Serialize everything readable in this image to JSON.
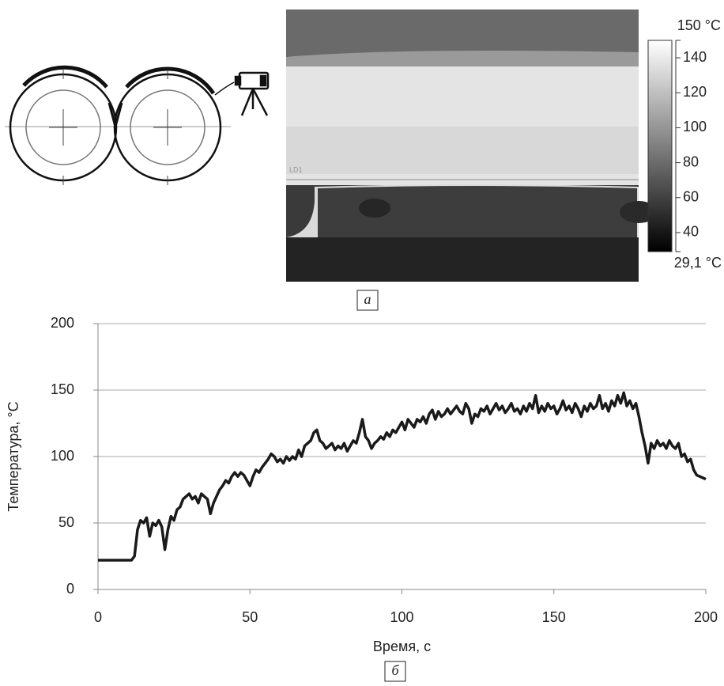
{
  "panel_labels": [
    "а",
    "б"
  ],
  "thermal_image": {
    "line_label": "LD1",
    "colorbar": {
      "lim": [
        29.1,
        150
      ],
      "ticks": [
        {
          "value": 150,
          "label": "150 °C"
        },
        140,
        120,
        100,
        80,
        60,
        40,
        {
          "value": 29.1,
          "label": "29,1 °C"
        }
      ]
    }
  },
  "chart_data": {
    "type": "line",
    "xlabel": "Время, с",
    "ylabel": "Температура, °C",
    "color": "#1a1a1a",
    "grid": true,
    "xlim": [
      0,
      200
    ],
    "xticks": [
      0,
      50,
      100,
      150,
      200
    ],
    "ylim": [
      0,
      200
    ],
    "yticks": [
      0,
      50,
      100,
      150,
      200
    ],
    "x": [
      0,
      1,
      2,
      3,
      4,
      5,
      6,
      7,
      8,
      9,
      10,
      11,
      12,
      13,
      14,
      15,
      16,
      17,
      18,
      19,
      20,
      21,
      22,
      23,
      24,
      25,
      26,
      27,
      28,
      29,
      30,
      31,
      32,
      33,
      34,
      35,
      36,
      37,
      38,
      39,
      40,
      41,
      42,
      43,
      44,
      45,
      46,
      47,
      48,
      49,
      50,
      51,
      52,
      53,
      54,
      55,
      56,
      57,
      58,
      59,
      60,
      61,
      62,
      63,
      64,
      65,
      66,
      67,
      68,
      69,
      70,
      71,
      72,
      73,
      74,
      75,
      76,
      77,
      78,
      79,
      80,
      81,
      82,
      83,
      84,
      85,
      86,
      87,
      88,
      89,
      90,
      91,
      92,
      93,
      94,
      95,
      96,
      97,
      98,
      99,
      100,
      101,
      102,
      103,
      104,
      105,
      106,
      107,
      108,
      109,
      110,
      111,
      112,
      113,
      114,
      115,
      116,
      117,
      118,
      119,
      120,
      121,
      122,
      123,
      124,
      125,
      126,
      127,
      128,
      129,
      130,
      131,
      132,
      133,
      134,
      135,
      136,
      137,
      138,
      139,
      140,
      141,
      142,
      143,
      144,
      145,
      146,
      147,
      148,
      149,
      150,
      151,
      152,
      153,
      154,
      155,
      156,
      157,
      158,
      159,
      160,
      161,
      162,
      163,
      164,
      165,
      166,
      167,
      168,
      169,
      170,
      171,
      172,
      173,
      174,
      175,
      176,
      177,
      178,
      179,
      180,
      181,
      182,
      183,
      184,
      185,
      186,
      187,
      188,
      189,
      190,
      191,
      192,
      193,
      194,
      195,
      196,
      197,
      198,
      199,
      200
    ],
    "values": [
      22,
      22,
      22,
      22,
      22,
      22,
      22,
      22,
      22,
      22,
      22,
      22,
      25,
      45,
      52,
      50,
      54,
      40,
      50,
      48,
      52,
      47,
      30,
      45,
      55,
      52,
      60,
      62,
      68,
      70,
      72,
      68,
      70,
      65,
      72,
      70,
      68,
      57,
      65,
      70,
      75,
      78,
      82,
      80,
      85,
      88,
      85,
      88,
      86,
      82,
      78,
      85,
      90,
      88,
      92,
      95,
      98,
      102,
      100,
      96,
      98,
      95,
      100,
      97,
      100,
      98,
      105,
      100,
      108,
      110,
      112,
      118,
      120,
      112,
      110,
      106,
      108,
      110,
      105,
      108,
      106,
      110,
      104,
      108,
      112,
      110,
      118,
      128,
      115,
      112,
      106,
      110,
      112,
      115,
      113,
      118,
      115,
      120,
      118,
      122,
      126,
      120,
      128,
      125,
      122,
      128,
      126,
      130,
      125,
      132,
      135,
      128,
      134,
      130,
      132,
      136,
      132,
      135,
      138,
      134,
      132,
      140,
      136,
      125,
      132,
      130,
      136,
      134,
      138,
      132,
      136,
      140,
      135,
      138,
      133,
      136,
      140,
      134,
      136,
      132,
      138,
      134,
      140,
      136,
      146,
      133,
      138,
      134,
      140,
      136,
      138,
      132,
      136,
      142,
      135,
      138,
      133,
      140,
      136,
      130,
      138,
      134,
      140,
      136,
      138,
      146,
      136,
      140,
      134,
      142,
      138,
      146,
      140,
      148,
      138,
      142,
      136,
      140,
      130,
      118,
      108,
      95,
      110,
      106,
      112,
      108,
      110,
      106,
      112,
      108,
      106,
      110,
      100,
      102,
      96,
      98,
      90,
      86,
      85,
      84,
      83
    ]
  }
}
